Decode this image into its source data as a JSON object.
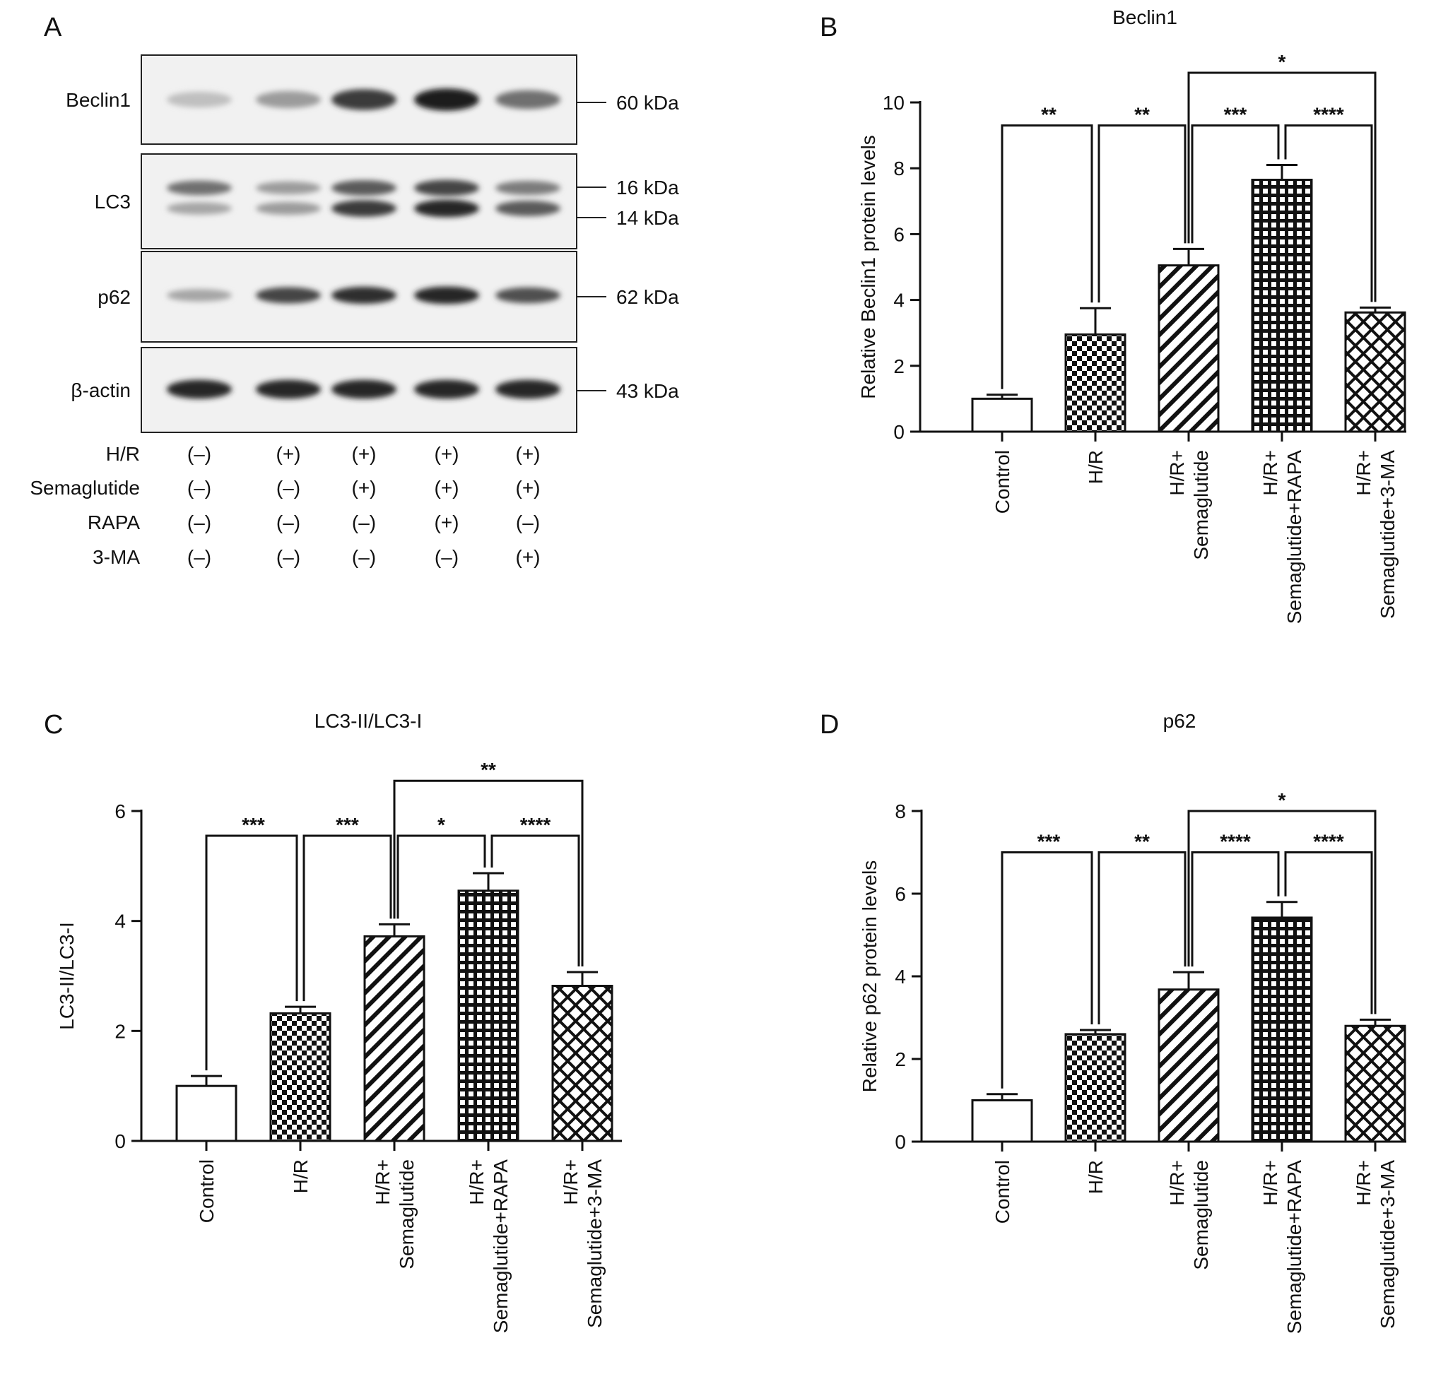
{
  "panels": {
    "a": "A",
    "b": "B",
    "c": "C",
    "d": "D"
  },
  "blot": {
    "rows": [
      {
        "name": "Beclin1",
        "markers": [
          "60 kDa"
        ]
      },
      {
        "name": "LC3",
        "markers": [
          "16 kDa",
          "14 kDa"
        ]
      },
      {
        "name": "p62",
        "markers": [
          "62 kDa"
        ]
      },
      {
        "name": "β-actin",
        "markers": [
          "43 kDa"
        ]
      }
    ],
    "lanes": 5,
    "band_intensity": {
      "Beclin1": [
        0.18,
        0.35,
        0.8,
        0.95,
        0.55
      ],
      "LC3_upper": [
        0.55,
        0.35,
        0.65,
        0.75,
        0.5
      ],
      "LC3_lower": [
        0.3,
        0.35,
        0.8,
        0.9,
        0.65
      ],
      "p62": [
        0.3,
        0.75,
        0.85,
        0.9,
        0.7
      ],
      "beta_actin": [
        0.9,
        0.9,
        0.9,
        0.9,
        0.9
      ]
    },
    "treatments": [
      {
        "label": "H/R",
        "signs": [
          "(–)",
          "(+)",
          "(+)",
          "(+)",
          "(+)"
        ]
      },
      {
        "label": "Semaglutide",
        "signs": [
          "(–)",
          "(–)",
          "(+)",
          "(+)",
          "(+)"
        ]
      },
      {
        "label": "RAPA",
        "signs": [
          "(–)",
          "(–)",
          "(–)",
          "(+)",
          "(–)"
        ]
      },
      {
        "label": "3-MA",
        "signs": [
          "(–)",
          "(–)",
          "(–)",
          "(–)",
          "(+)"
        ]
      }
    ]
  },
  "chart_data": [
    {
      "panel": "B",
      "type": "bar",
      "title": "Beclin1",
      "ylabel": "Relative Beclin1 protein levels",
      "ylim": [
        0,
        10
      ],
      "yticks": [
        0,
        2,
        4,
        6,
        8,
        10
      ],
      "categories": [
        "Control",
        "H/R",
        "H/R+ Semaglutide",
        "H/R+ Semaglutide+RAPA",
        "H/R+ Semaglutide+3-MA"
      ],
      "category_lines": [
        [
          "Control"
        ],
        [
          "H/R"
        ],
        [
          "H/R+",
          "Semaglutide"
        ],
        [
          "H/R+",
          "Semaglutide+RAPA"
        ],
        [
          "H/R+",
          "Semaglutide+3-MA"
        ]
      ],
      "values": [
        1.0,
        2.95,
        5.05,
        7.65,
        3.62
      ],
      "errors": [
        0.12,
        0.8,
        0.5,
        0.45,
        0.15
      ],
      "patterns": [
        "none",
        "checker",
        "diagonal",
        "grid",
        "crosshatch"
      ],
      "significance": [
        {
          "from": 0,
          "to": 1,
          "label": "**",
          "y": 9.3
        },
        {
          "from": 1,
          "to": 2,
          "label": "**",
          "y": 9.3
        },
        {
          "from": 2,
          "to": 3,
          "label": "***",
          "y": 9.3
        },
        {
          "from": 3,
          "to": 4,
          "label": "****",
          "y": 9.3
        },
        {
          "from": 2,
          "to": 4,
          "label": "*",
          "y": 10.9
        }
      ]
    },
    {
      "panel": "C",
      "type": "bar",
      "title": "LC3-II/LC3-I",
      "ylabel": "LC3-II/LC3-I",
      "ylim": [
        0,
        6
      ],
      "yticks": [
        0,
        2,
        4,
        6
      ],
      "categories": [
        "Control",
        "H/R",
        "H/R+ Semaglutide",
        "H/R+ Semaglutide+RAPA",
        "H/R+ Semaglutide+3-MA"
      ],
      "category_lines": [
        [
          "Control"
        ],
        [
          "H/R"
        ],
        [
          "H/R+",
          "Semaglutide"
        ],
        [
          "H/R+",
          "Semaglutide+RAPA"
        ],
        [
          "H/R+",
          "Semaglutide+3-MA"
        ]
      ],
      "values": [
        1.0,
        2.32,
        3.72,
        4.55,
        2.82
      ],
      "errors": [
        0.18,
        0.12,
        0.22,
        0.32,
        0.25
      ],
      "patterns": [
        "none",
        "checker",
        "diagonal",
        "grid",
        "crosshatch"
      ],
      "significance": [
        {
          "from": 0,
          "to": 1,
          "label": "***",
          "y": 5.55
        },
        {
          "from": 1,
          "to": 2,
          "label": "***",
          "y": 5.55
        },
        {
          "from": 2,
          "to": 3,
          "label": "*",
          "y": 5.55
        },
        {
          "from": 3,
          "to": 4,
          "label": "****",
          "y": 5.55
        },
        {
          "from": 2,
          "to": 4,
          "label": "**",
          "y": 6.55
        }
      ]
    },
    {
      "panel": "D",
      "type": "bar",
      "title": "p62",
      "ylabel": "Relative p62 protein levels",
      "ylim": [
        0,
        8
      ],
      "yticks": [
        0,
        2,
        4,
        6,
        8
      ],
      "categories": [
        "Control",
        "H/R",
        "H/R+ Semaglutide",
        "H/R+ Semaglutide+RAPA",
        "H/R+ Semaglutide+3-MA"
      ],
      "category_lines": [
        [
          "Control"
        ],
        [
          "H/R"
        ],
        [
          "H/R+",
          "Semaglutide"
        ],
        [
          "H/R+",
          "Semaglutide+RAPA"
        ],
        [
          "H/R+",
          "Semaglutide+3-MA"
        ]
      ],
      "values": [
        1.0,
        2.6,
        3.68,
        5.42,
        2.8
      ],
      "errors": [
        0.15,
        0.1,
        0.42,
        0.38,
        0.15
      ],
      "patterns": [
        "none",
        "checker",
        "diagonal",
        "grid",
        "crosshatch"
      ],
      "significance": [
        {
          "from": 0,
          "to": 1,
          "label": "***",
          "y": 7.0
        },
        {
          "from": 1,
          "to": 2,
          "label": "**",
          "y": 7.0
        },
        {
          "from": 2,
          "to": 3,
          "label": "****",
          "y": 7.0
        },
        {
          "from": 3,
          "to": 4,
          "label": "****",
          "y": 7.0
        },
        {
          "from": 2,
          "to": 4,
          "label": "*",
          "y": 8.0
        }
      ]
    }
  ]
}
